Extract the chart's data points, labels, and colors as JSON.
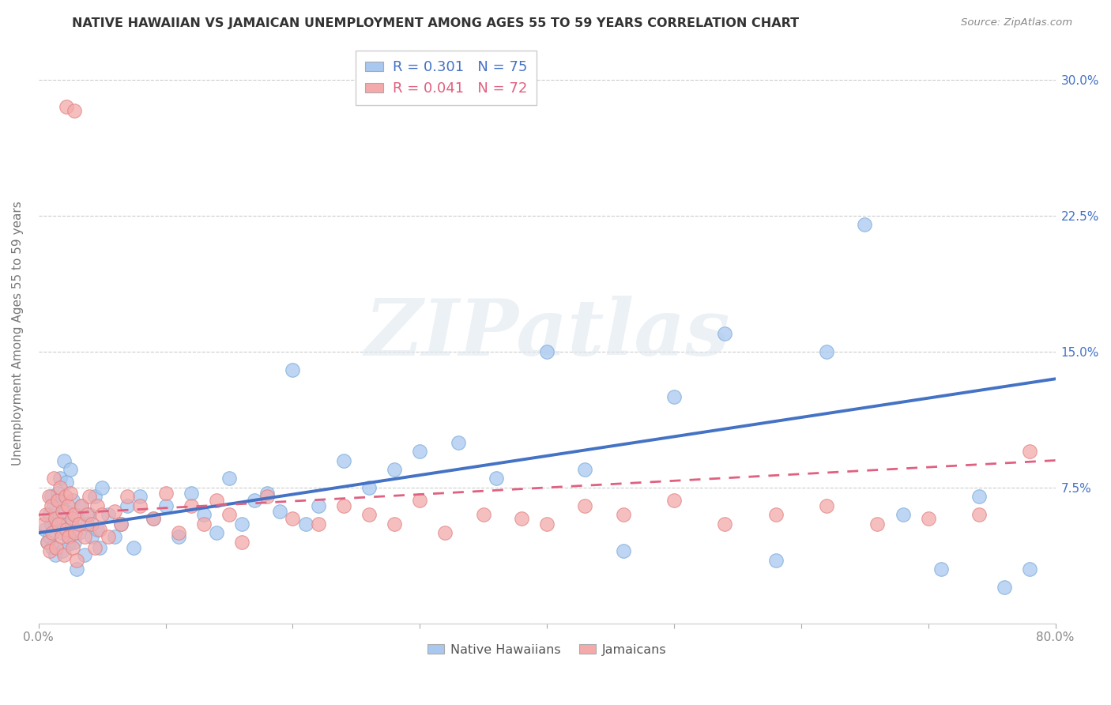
{
  "title": "NATIVE HAWAIIAN VS JAMAICAN UNEMPLOYMENT AMONG AGES 55 TO 59 YEARS CORRELATION CHART",
  "source": "Source: ZipAtlas.com",
  "ylabel": "Unemployment Among Ages 55 to 59 years",
  "xlim": [
    0.0,
    0.8
  ],
  "ylim": [
    0.0,
    0.32
  ],
  "color_blue": "#A8C8F0",
  "color_blue_edge": "#7AAAD8",
  "color_blue_line": "#4472C4",
  "color_pink": "#F4AAAA",
  "color_pink_edge": "#E08080",
  "color_pink_line": "#E06080",
  "r_blue": 0.301,
  "n_blue": 75,
  "r_pink": 0.041,
  "n_pink": 72,
  "legend_label_blue": "Native Hawaiians",
  "legend_label_pink": "Jamaicans",
  "watermark_text": "ZIPatlas",
  "background_color": "#FFFFFF",
  "ytick_right_labels": [
    "",
    "7.5%",
    "15.0%",
    "22.5%",
    "30.0%"
  ],
  "ytick_positions": [
    0.0,
    0.075,
    0.15,
    0.225,
    0.3
  ],
  "nh_x": [
    0.005,
    0.007,
    0.008,
    0.009,
    0.01,
    0.01,
    0.011,
    0.012,
    0.013,
    0.014,
    0.015,
    0.016,
    0.017,
    0.018,
    0.019,
    0.02,
    0.021,
    0.022,
    0.023,
    0.024,
    0.025,
    0.026,
    0.027,
    0.028,
    0.029,
    0.03,
    0.032,
    0.034,
    0.036,
    0.038,
    0.04,
    0.042,
    0.044,
    0.046,
    0.048,
    0.05,
    0.055,
    0.06,
    0.065,
    0.07,
    0.075,
    0.08,
    0.09,
    0.1,
    0.11,
    0.12,
    0.13,
    0.14,
    0.15,
    0.16,
    0.17,
    0.18,
    0.19,
    0.2,
    0.21,
    0.22,
    0.24,
    0.26,
    0.28,
    0.3,
    0.33,
    0.36,
    0.4,
    0.43,
    0.46,
    0.5,
    0.54,
    0.58,
    0.62,
    0.65,
    0.68,
    0.71,
    0.74,
    0.76,
    0.78
  ],
  "nh_y": [
    0.052,
    0.045,
    0.06,
    0.048,
    0.055,
    0.07,
    0.042,
    0.065,
    0.038,
    0.058,
    0.072,
    0.068,
    0.08,
    0.05,
    0.04,
    0.09,
    0.062,
    0.078,
    0.055,
    0.044,
    0.085,
    0.055,
    0.068,
    0.045,
    0.06,
    0.03,
    0.05,
    0.065,
    0.038,
    0.055,
    0.06,
    0.048,
    0.07,
    0.052,
    0.042,
    0.075,
    0.06,
    0.048,
    0.055,
    0.065,
    0.042,
    0.07,
    0.058,
    0.065,
    0.048,
    0.072,
    0.06,
    0.05,
    0.08,
    0.055,
    0.068,
    0.072,
    0.062,
    0.14,
    0.055,
    0.065,
    0.09,
    0.075,
    0.085,
    0.095,
    0.1,
    0.08,
    0.15,
    0.085,
    0.04,
    0.125,
    0.16,
    0.035,
    0.15,
    0.22,
    0.06,
    0.03,
    0.07,
    0.02,
    0.03
  ],
  "ja_x": [
    0.004,
    0.006,
    0.007,
    0.008,
    0.009,
    0.01,
    0.011,
    0.012,
    0.013,
    0.014,
    0.015,
    0.016,
    0.017,
    0.018,
    0.019,
    0.02,
    0.021,
    0.022,
    0.023,
    0.024,
    0.025,
    0.026,
    0.027,
    0.028,
    0.029,
    0.03,
    0.032,
    0.034,
    0.036,
    0.038,
    0.04,
    0.042,
    0.044,
    0.046,
    0.048,
    0.05,
    0.055,
    0.06,
    0.065,
    0.07,
    0.08,
    0.09,
    0.1,
    0.11,
    0.12,
    0.13,
    0.14,
    0.15,
    0.16,
    0.18,
    0.2,
    0.22,
    0.24,
    0.26,
    0.28,
    0.3,
    0.32,
    0.35,
    0.38,
    0.4,
    0.43,
    0.46,
    0.5,
    0.54,
    0.58,
    0.62,
    0.66,
    0.7,
    0.74,
    0.78,
    0.022,
    0.028
  ],
  "ja_y": [
    0.055,
    0.06,
    0.045,
    0.07,
    0.04,
    0.065,
    0.05,
    0.08,
    0.058,
    0.042,
    0.068,
    0.055,
    0.075,
    0.048,
    0.062,
    0.038,
    0.07,
    0.052,
    0.065,
    0.048,
    0.072,
    0.058,
    0.042,
    0.06,
    0.05,
    0.035,
    0.055,
    0.065,
    0.048,
    0.06,
    0.07,
    0.055,
    0.042,
    0.065,
    0.052,
    0.06,
    0.048,
    0.062,
    0.055,
    0.07,
    0.065,
    0.058,
    0.072,
    0.05,
    0.065,
    0.055,
    0.068,
    0.06,
    0.045,
    0.07,
    0.058,
    0.055,
    0.065,
    0.06,
    0.055,
    0.068,
    0.05,
    0.06,
    0.058,
    0.055,
    0.065,
    0.06,
    0.068,
    0.055,
    0.06,
    0.065,
    0.055,
    0.058,
    0.06,
    0.095,
    0.285,
    0.283
  ]
}
